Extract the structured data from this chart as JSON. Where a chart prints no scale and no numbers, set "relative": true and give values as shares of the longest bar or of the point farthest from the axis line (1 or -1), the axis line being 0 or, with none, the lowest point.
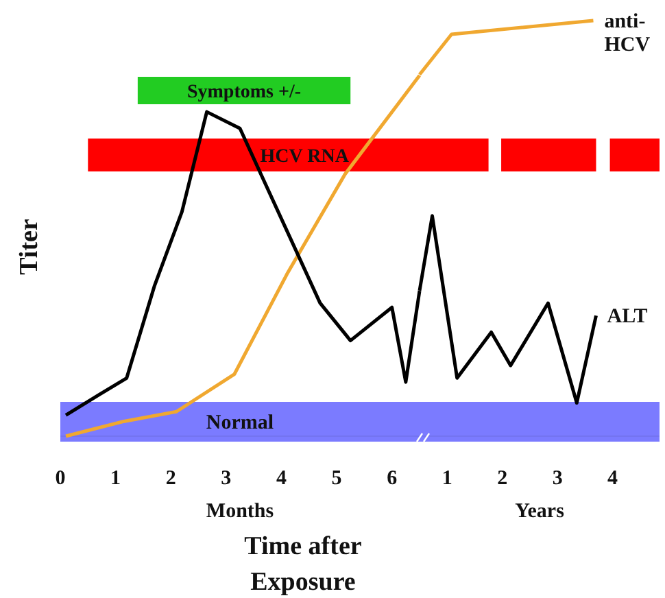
{
  "chart_data": [
    {
      "type": "line",
      "relative": true,
      "ylabel": "Titer",
      "xlabel": "Time after Exposure",
      "annotations": [
        "Months"
      ],
      "xlim": [
        0,
        6.5
      ],
      "xticks": [
        0,
        1,
        2,
        3,
        4,
        5,
        6
      ],
      "series": [
        {
          "color": "#f0a830",
          "x": [
            0.1,
            1.15,
            2.1,
            3.15,
            4.1,
            5.15,
            6.5
          ],
          "values": [
            0,
            0.041,
            0.068,
            0.172,
            0.449,
            0.726,
            1.0
          ]
        },
        {
          "color": "#000000",
          "x": [
            0.1,
            0.7,
            1.2,
            1.7,
            2.2,
            2.65,
            3.25,
            4.7,
            5.25,
            6.0,
            6.25,
            6.5
          ],
          "values": [
            0.058,
            0.115,
            0.161,
            0.415,
            0.622,
            0.899,
            0.853,
            0.369,
            0.265,
            0.357,
            0.15,
            0.403
          ]
        }
      ],
      "bands": [
        {
          "axis": "x",
          "from": 1.4,
          "to": 5.25,
          "label": "Symptoms +/-",
          "color": "#22cc22"
        },
        {
          "axis": "x",
          "from": 0.5,
          "to": 6.5,
          "label": "HCV RNA",
          "color": "#ff0000"
        },
        {
          "axis": "x",
          "from": 0,
          "to": 6.5,
          "label": "Normal",
          "color": "#7b7bff"
        }
      ],
      "grid": false,
      "legend": false,
      "marker": "none",
      "line_style": "solid"
    },
    {
      "type": "line",
      "relative": true,
      "annotations": [
        "Years"
      ],
      "xlim": [
        0.5,
        4.85
      ],
      "xticks": [
        1,
        2,
        3,
        4
      ],
      "series": [
        {
          "name": "anti-HCV",
          "color": "#f0a830",
          "x": [
            0.5,
            1.08,
            3.65
          ],
          "values": [
            0.87,
            0.967,
            1.0
          ]
        },
        {
          "name": "ALT",
          "color": "#000000",
          "x": [
            0.5,
            0.73,
            1.18,
            1.8,
            2.15,
            2.83,
            3.35,
            3.7
          ],
          "values": [
            0.35,
            0.53,
            0.14,
            0.25,
            0.17,
            0.32,
            0.08,
            0.29
          ]
        }
      ],
      "bands": [
        {
          "axis": "x",
          "from": 0.5,
          "to": 1.75,
          "label": null,
          "color": "#ff0000"
        },
        {
          "axis": "x",
          "from": 1.98,
          "to": 3.7,
          "label": null,
          "color": "#ff0000"
        },
        {
          "axis": "x",
          "from": 3.95,
          "to": 4.85,
          "label": null,
          "color": "#ff0000"
        },
        {
          "axis": "x",
          "from": 0.5,
          "to": 4.85,
          "label": null,
          "color": "#7b7bff"
        }
      ],
      "grid": false,
      "legend": false,
      "marker": "none",
      "line_style": "solid"
    }
  ]
}
